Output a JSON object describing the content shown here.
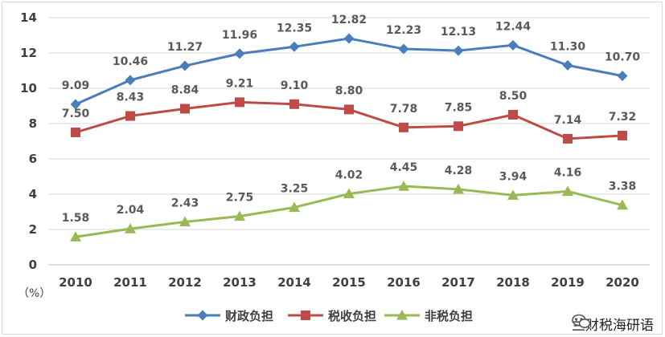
{
  "chart_data": {
    "type": "line",
    "categories": [
      "2010",
      "2011",
      "2012",
      "2013",
      "2014",
      "2015",
      "2016",
      "2017",
      "2018",
      "2019",
      "2020"
    ],
    "ylim": [
      0,
      14
    ],
    "yticks": [
      "0",
      "2",
      "4",
      "6",
      "8",
      "10",
      "12",
      "14"
    ],
    "ylabel": "（%）",
    "grid": true,
    "legend_position": "bottom",
    "series": [
      {
        "name": "财政负担",
        "color": "#4a7ebb",
        "marker": "diamond",
        "values": [
          9.09,
          10.46,
          11.27,
          11.96,
          12.35,
          12.82,
          12.23,
          12.13,
          12.44,
          11.3,
          10.7
        ],
        "labels": [
          "9.09",
          "10.46",
          "11.27",
          "11.96",
          "12.35",
          "12.82",
          "12.23",
          "12.13",
          "12.44",
          "11.30",
          "10.70"
        ]
      },
      {
        "name": "税收负担",
        "color": "#be4b48",
        "marker": "square",
        "values": [
          7.5,
          8.43,
          8.84,
          9.21,
          9.1,
          8.8,
          7.78,
          7.85,
          8.5,
          7.14,
          7.32
        ],
        "labels": [
          "7.50",
          "8.43",
          "8.84",
          "9.21",
          "9.10",
          "8.80",
          "7.78",
          "7.85",
          "8.50",
          "7.14",
          "7.32"
        ]
      },
      {
        "name": "非税负担",
        "color": "#98b954",
        "marker": "triangle",
        "values": [
          1.58,
          2.04,
          2.43,
          2.75,
          3.25,
          4.02,
          4.45,
          4.28,
          3.94,
          4.16,
          3.38
        ],
        "labels": [
          "1.58",
          "2.04",
          "2.43",
          "2.75",
          "3.25",
          "4.02",
          "4.45",
          "4.28",
          "3.94",
          "4.16",
          "3.38"
        ]
      }
    ]
  },
  "watermark": {
    "icon": "wechat-icon",
    "text": "兰财税海研语"
  }
}
